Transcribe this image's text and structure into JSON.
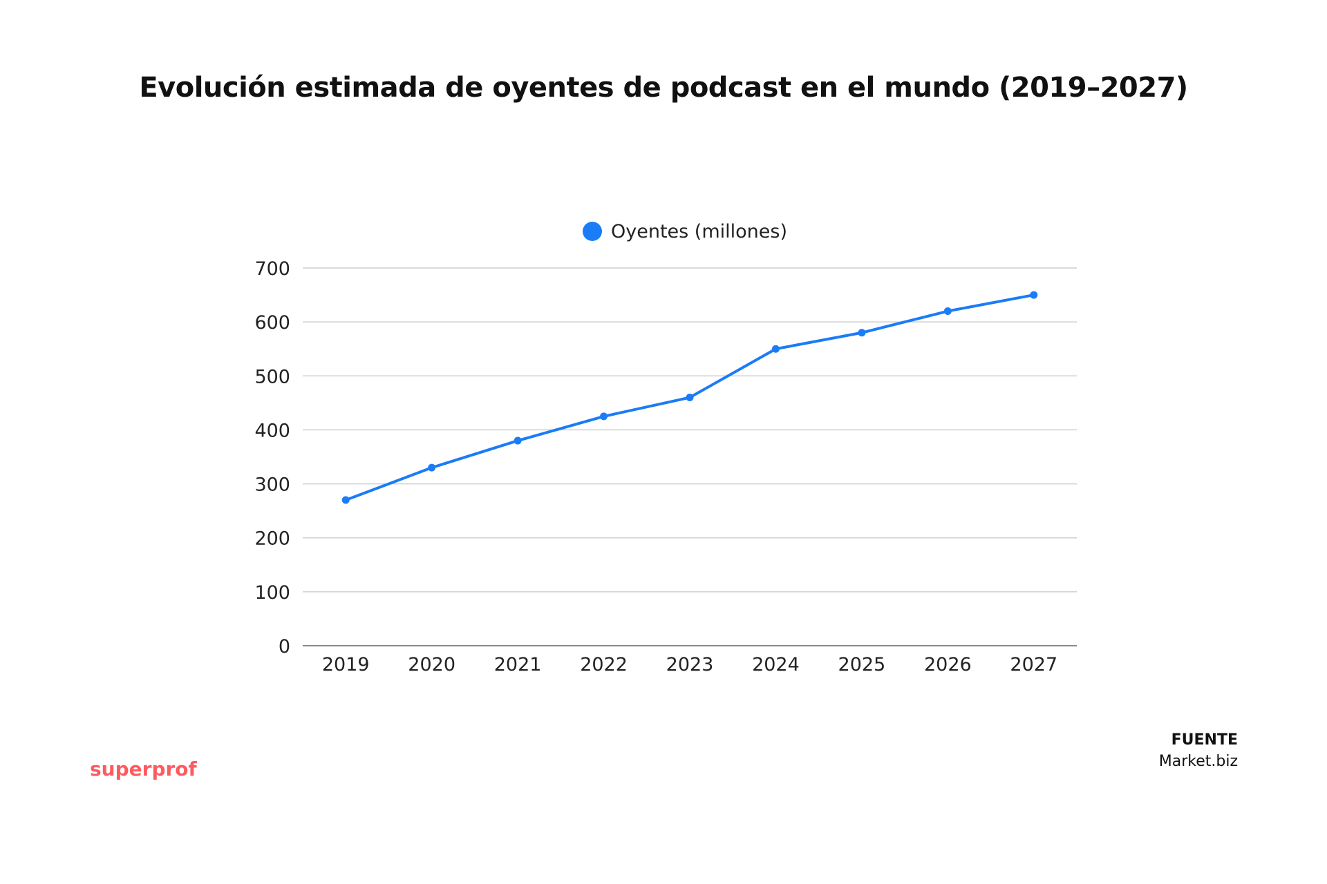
{
  "chart_data": {
    "type": "line",
    "title": "Evolución estimada de oyentes de podcast en el mundo (2019–2027)",
    "categories": [
      "2019",
      "2020",
      "2021",
      "2022",
      "2023",
      "2024",
      "2025",
      "2026",
      "2027"
    ],
    "series": [
      {
        "name": "Oyentes (millones)",
        "values": [
          270,
          330,
          380,
          425,
          460,
          550,
          580,
          620,
          650
        ],
        "color": "#1a7cf6"
      }
    ],
    "xlabel": "",
    "ylabel": "",
    "ylim": [
      0,
      700
    ],
    "yticks": [
      0,
      100,
      200,
      300,
      400,
      500,
      600,
      700
    ],
    "grid": true,
    "legend": "top-center"
  },
  "source": {
    "label": "FUENTE",
    "value": "Market.biz"
  },
  "brand": {
    "name": "superprof",
    "color": "#ff5a5f"
  }
}
